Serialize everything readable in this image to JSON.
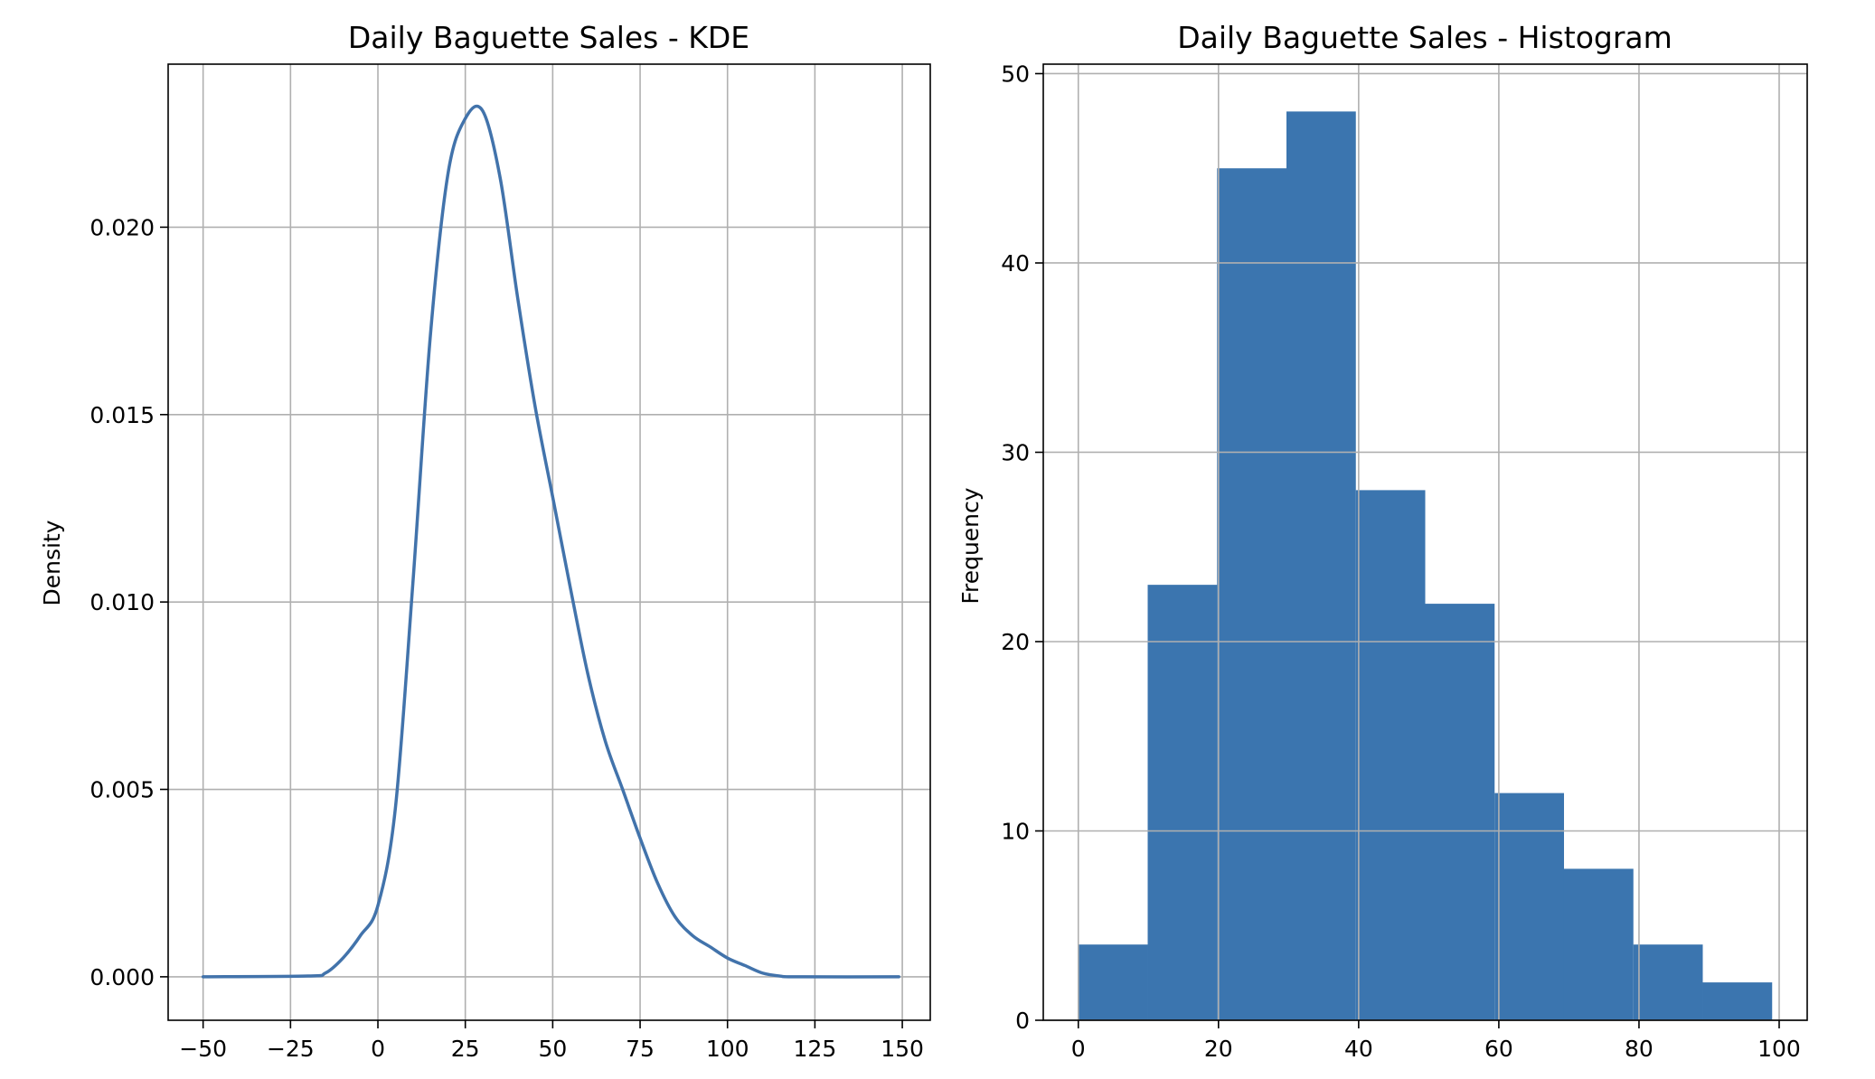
{
  "chart_data": [
    {
      "type": "line",
      "title": "Daily Baguette Sales - KDE",
      "xlabel": "",
      "ylabel": "Density",
      "xlim": [
        -60,
        158
      ],
      "ylim": [
        -0.00116,
        0.02435
      ],
      "xticks": [
        -50,
        -25,
        0,
        25,
        50,
        75,
        100,
        125,
        150
      ],
      "xtick_labels": [
        "−50",
        "−25",
        "0",
        "25",
        "50",
        "75",
        "100",
        "125",
        "150"
      ],
      "yticks": [
        0.0,
        0.005,
        0.01,
        0.015,
        0.02
      ],
      "ytick_labels": [
        "0.000",
        "0.005",
        "0.010",
        "0.015",
        "0.020"
      ],
      "grid": true,
      "color": "#4273ab",
      "x": [
        -50,
        -20,
        -15,
        -10,
        -5,
        0,
        5,
        10,
        15,
        20,
        25,
        30,
        35,
        40,
        45,
        50,
        55,
        60,
        65,
        70,
        75,
        80,
        85,
        90,
        95,
        100,
        105,
        110,
        115,
        120,
        149
      ],
      "y": [
        0.0,
        2e-05,
        0.0001,
        0.0005,
        0.0011,
        0.0019,
        0.0045,
        0.0105,
        0.0171,
        0.0214,
        0.0229,
        0.0231,
        0.0213,
        0.0181,
        0.0152,
        0.0128,
        0.0104,
        0.0081,
        0.0063,
        0.005,
        0.0037,
        0.0025,
        0.0016,
        0.0011,
        0.0008,
        0.0005,
        0.0003,
        0.0001,
        2e-05,
        0.0,
        0.0
      ]
    },
    {
      "type": "bar",
      "title": "Daily Baguette Sales - Histogram",
      "xlabel": "",
      "ylabel": "Frequency",
      "xlim": [
        -5,
        104
      ],
      "ylim": [
        0,
        50.5
      ],
      "xticks": [
        0,
        20,
        40,
        60,
        80,
        100
      ],
      "xtick_labels": [
        "0",
        "20",
        "40",
        "60",
        "80",
        "100"
      ],
      "yticks": [
        0,
        10,
        20,
        30,
        40,
        50
      ],
      "ytick_labels": [
        "0",
        "10",
        "20",
        "30",
        "40",
        "50"
      ],
      "grid": true,
      "color": "#3b75af",
      "bin_edges": [
        0,
        9.9,
        19.8,
        29.7,
        39.6,
        49.5,
        59.4,
        69.3,
        79.2,
        89.1,
        99
      ],
      "values": [
        4,
        23,
        45,
        48,
        28,
        22,
        12,
        8,
        4,
        2
      ]
    }
  ]
}
